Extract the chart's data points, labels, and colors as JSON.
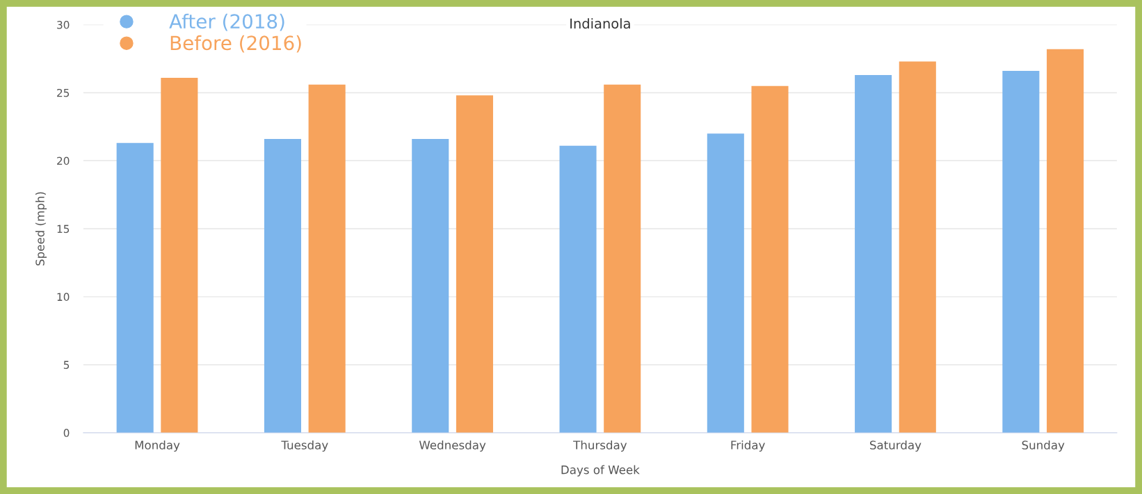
{
  "chart_data": {
    "type": "bar",
    "title": "Indianola",
    "xlabel": "Days of Week",
    "ylabel": "Speed (mph)",
    "categories": [
      "Monday",
      "Tuesday",
      "Wednesday",
      "Thursday",
      "Friday",
      "Saturday",
      "Sunday"
    ],
    "series": [
      {
        "name": "After (2018)",
        "color": "#7cb5ec",
        "values": [
          21.3,
          21.6,
          21.6,
          21.1,
          22.0,
          26.3,
          26.6
        ]
      },
      {
        "name": "Before (2016)",
        "color": "#f7a35c",
        "values": [
          26.1,
          25.6,
          24.8,
          25.6,
          25.5,
          27.3,
          28.2
        ]
      }
    ],
    "ylim": [
      0,
      30
    ],
    "yticks": [
      0,
      5,
      10,
      15,
      20,
      25,
      30
    ],
    "grid": "y",
    "legend": "top left"
  }
}
